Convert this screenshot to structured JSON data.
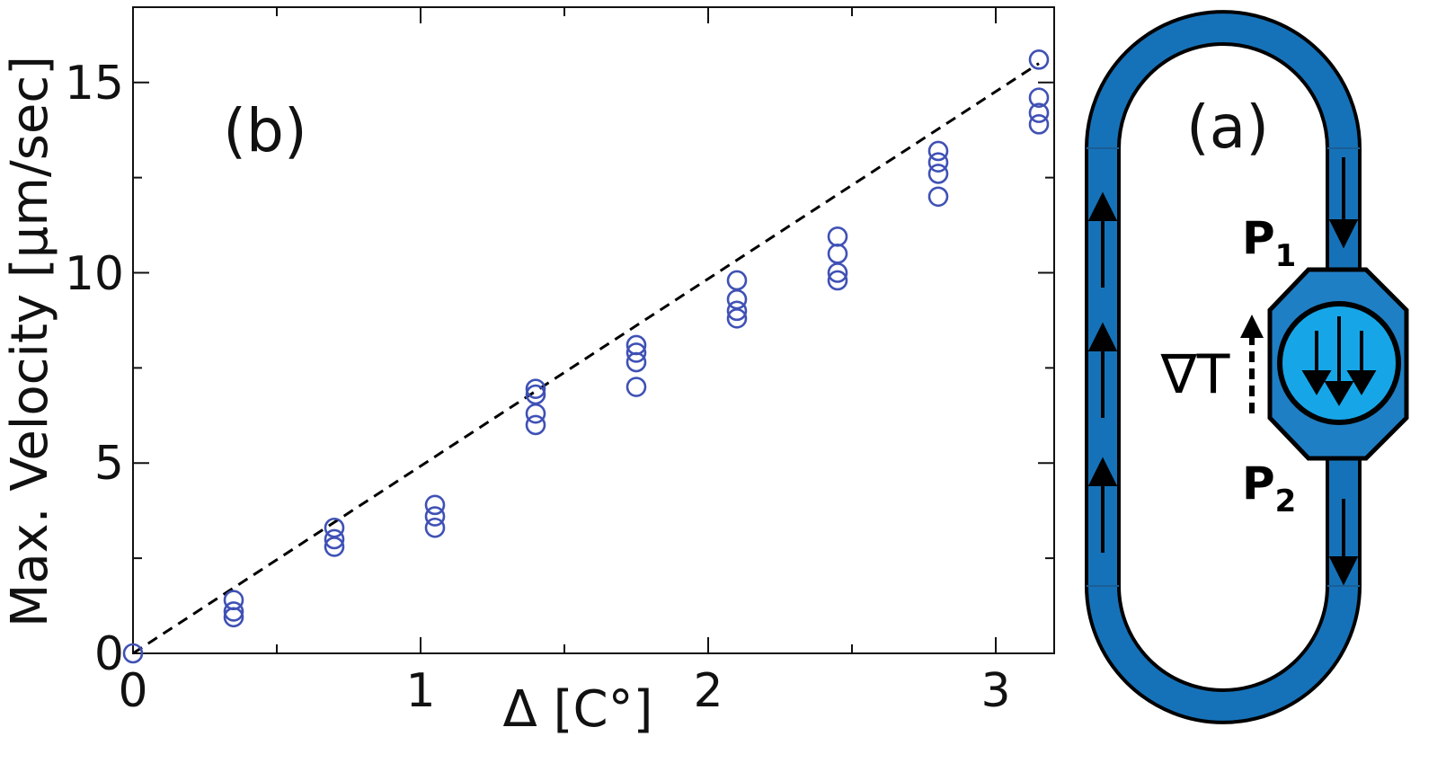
{
  "chart_data": {
    "type": "scatter",
    "panel_label": "(b)",
    "xlabel": "Δ [C°]",
    "ylabel": "Max. Velocity [μm/sec]",
    "xlim": [
      0,
      3.2
    ],
    "ylim": [
      0,
      17
    ],
    "x_ticks": [
      0,
      1,
      2,
      3
    ],
    "y_ticks": [
      0,
      5,
      10,
      15
    ],
    "grid": false,
    "marker_color": "#3f51b5",
    "fit_line_color": "#000000",
    "points": [
      {
        "x": 0,
        "y": 0
      },
      {
        "x": 0.35,
        "y": 1.4
      },
      {
        "x": 0.35,
        "y": 1.1
      },
      {
        "x": 0.35,
        "y": 0.95
      },
      {
        "x": 0.7,
        "y": 3.3
      },
      {
        "x": 0.7,
        "y": 3.0
      },
      {
        "x": 0.7,
        "y": 2.8
      },
      {
        "x": 1.05,
        "y": 3.9
      },
      {
        "x": 1.05,
        "y": 3.6
      },
      {
        "x": 1.05,
        "y": 3.3
      },
      {
        "x": 1.4,
        "y": 6.95
      },
      {
        "x": 1.4,
        "y": 6.8
      },
      {
        "x": 1.4,
        "y": 6.3
      },
      {
        "x": 1.4,
        "y": 6.0
      },
      {
        "x": 1.75,
        "y": 8.1
      },
      {
        "x": 1.75,
        "y": 7.9
      },
      {
        "x": 1.75,
        "y": 7.65
      },
      {
        "x": 1.75,
        "y": 7.0
      },
      {
        "x": 2.1,
        "y": 9.8
      },
      {
        "x": 2.1,
        "y": 9.3
      },
      {
        "x": 2.1,
        "y": 9.0
      },
      {
        "x": 2.1,
        "y": 8.8
      },
      {
        "x": 2.45,
        "y": 10.95
      },
      {
        "x": 2.45,
        "y": 10.5
      },
      {
        "x": 2.45,
        "y": 10.0
      },
      {
        "x": 2.45,
        "y": 9.8
      },
      {
        "x": 2.8,
        "y": 13.2
      },
      {
        "x": 2.8,
        "y": 12.9
      },
      {
        "x": 2.8,
        "y": 12.6
      },
      {
        "x": 2.8,
        "y": 12.0
      },
      {
        "x": 3.15,
        "y": 15.6
      },
      {
        "x": 3.15,
        "y": 14.6
      },
      {
        "x": 3.15,
        "y": 14.2
      },
      {
        "x": 3.15,
        "y": 13.9
      }
    ],
    "fit_line": {
      "x": [
        0,
        3.15
      ],
      "y": [
        0,
        15.5
      ]
    }
  },
  "schematic": {
    "panel_label": "(a)",
    "p1_main": "P",
    "p1_sub": "1",
    "p2_main": "P",
    "p2_sub": "2",
    "gradient_label": "∇T",
    "loop_color": "#1672b8",
    "chamber_color": "#1f7fc4",
    "sphere_color": "#16a6e8"
  }
}
